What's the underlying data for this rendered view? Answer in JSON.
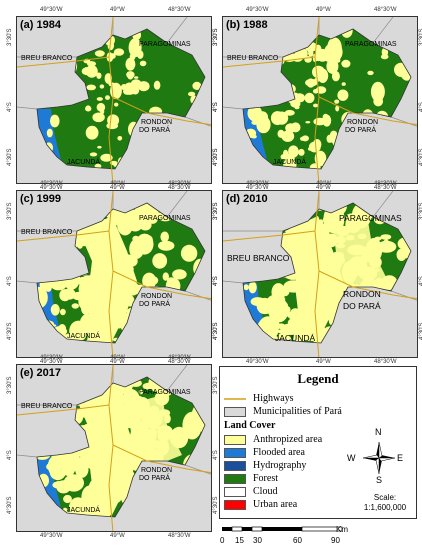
{
  "panels": [
    {
      "label": "(a) 1984",
      "anthro": 0.18
    },
    {
      "label": "(b) 1988",
      "anthro": 0.26
    },
    {
      "label": "(c) 1999",
      "anthro": 0.48
    },
    {
      "label": "(d) 2010",
      "anthro": 0.62
    },
    {
      "label": "(e) 2017",
      "anthro": 0.66
    }
  ],
  "places": {
    "paragominas": "PARAGOMINAS",
    "breu_branco": "BREU BRANCO",
    "rondon_1": "RONDON",
    "rondon_2": "DO PARÁ",
    "jacunda": "JACUNDÁ"
  },
  "ticks": {
    "lon1": "49°30'W",
    "lon2": "49°W",
    "lon3": "48°30'W",
    "lat1": "3°30'S",
    "lat2": "4°S",
    "lat3": "4°30'S"
  },
  "legend": {
    "title": "Legend",
    "highways": "Highways",
    "municipalities": "Municipalities of Pará",
    "land_cover": "Land Cover",
    "classes": [
      {
        "label": "Anthropized area",
        "color": "#ffff99"
      },
      {
        "label": "Flooded area",
        "color": "#1f7ad6"
      },
      {
        "label": "Hydrography",
        "color": "#1b4f9c"
      },
      {
        "label": "Forest",
        "color": "#1f7a12"
      },
      {
        "label": "Cloud",
        "color": "#ffffff"
      },
      {
        "label": "Urban area",
        "color": "#ff0000"
      }
    ]
  },
  "compass": {
    "n": "N",
    "s": "S",
    "e": "E",
    "w": "W"
  },
  "scale": {
    "label": "Scale:",
    "value": "1:1,600,000",
    "ticks": [
      "0",
      "15",
      "30",
      "60",
      "90"
    ],
    "unit": "Km"
  },
  "colors": {
    "forest": "#1f7a12",
    "anthropized": "#ffff99",
    "flooded": "#1f7ad6",
    "municipality": "#d9d9d9",
    "highway": "#d4a017"
  }
}
